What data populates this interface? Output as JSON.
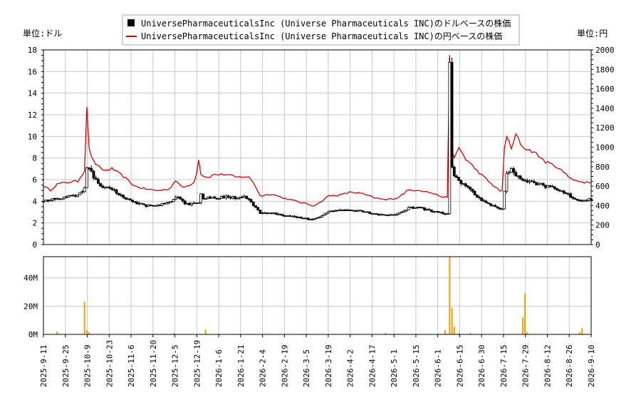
{
  "chart_data": {
    "type": "candlestick+line+bar",
    "legend": {
      "placement": "top-center",
      "entries": [
        {
          "label": "UniversePharmaceuticalsInc (Universe Pharmaceuticals INC)のドルベースの株価",
          "color": "#000000",
          "marker": "square"
        },
        {
          "label": "UniversePharmaceuticalsInc (Universe Pharmaceuticals INC)の円ベースの株価",
          "color": "#dd0000",
          "marker": "line"
        }
      ]
    },
    "left_axis_label": "単位:ドル",
    "right_axis_label": "単位:円",
    "y_left": {
      "min": 0,
      "max": 18,
      "ticks": [
        "0",
        "2",
        "4",
        "6",
        "8",
        "10",
        "12",
        "14",
        "16",
        "18"
      ]
    },
    "y_right": {
      "min": 0,
      "max": 2000,
      "ticks": [
        "0",
        "200",
        "400",
        "600",
        "800",
        "1000",
        "1200",
        "1400",
        "1600",
        "1800",
        "2000"
      ]
    },
    "volume_axis": {
      "min": 0,
      "max": 55,
      "ticks": [
        "0M",
        "20M",
        "40M"
      ]
    },
    "x_tick_labels": [
      "2025-9-11",
      "2025-9-25",
      "2025-10-9",
      "2025-10-23",
      "2025-11-6",
      "2025-11-20",
      "2025-12-5",
      "2025-12-19",
      "2026-1-6",
      "2026-1-21",
      "2026-2-4",
      "2026-2-19",
      "2026-3-5",
      "2026-3-19",
      "2026-4-2",
      "2026-4-17",
      "2026-5-1",
      "2026-5-15",
      "2026-6-1",
      "2026-6-15",
      "2026-6-30",
      "2026-7-15",
      "2026-7-29",
      "2026-8-12",
      "2026-8-26",
      "2026-9-10"
    ],
    "grid": true,
    "keypoints_dollar": [
      [
        0,
        4.0
      ],
      [
        5,
        4.2
      ],
      [
        10,
        4.4
      ],
      [
        15,
        4.6
      ],
      [
        18,
        5.2
      ],
      [
        19,
        7.2
      ],
      [
        19.5,
        9.5
      ],
      [
        20,
        7.2
      ],
      [
        22,
        6.2
      ],
      [
        25,
        5.3
      ],
      [
        30,
        5.1
      ],
      [
        35,
        4.4
      ],
      [
        40,
        3.9
      ],
      [
        45,
        3.6
      ],
      [
        50,
        3.6
      ],
      [
        55,
        3.9
      ],
      [
        58,
        4.4
      ],
      [
        60,
        4.2
      ],
      [
        62,
        3.7
      ],
      [
        66,
        3.8
      ],
      [
        68,
        3.9
      ],
      [
        69,
        4.8
      ],
      [
        70,
        4.2
      ],
      [
        72,
        4.4
      ],
      [
        75,
        4.3
      ],
      [
        80,
        4.4
      ],
      [
        85,
        4.3
      ],
      [
        88,
        4.5
      ],
      [
        90,
        4.2
      ],
      [
        92,
        3.6
      ],
      [
        95,
        2.9
      ],
      [
        100,
        2.9
      ],
      [
        105,
        2.7
      ],
      [
        110,
        2.6
      ],
      [
        115,
        2.4
      ],
      [
        118,
        2.3
      ],
      [
        121,
        2.6
      ],
      [
        125,
        3.0
      ],
      [
        130,
        3.2
      ],
      [
        135,
        3.2
      ],
      [
        140,
        3.1
      ],
      [
        145,
        2.8
      ],
      [
        150,
        2.7
      ],
      [
        155,
        2.8
      ],
      [
        160,
        3.4
      ],
      [
        165,
        3.4
      ],
      [
        170,
        3.1
      ],
      [
        175,
        2.9
      ],
      [
        177,
        2.8
      ],
      [
        178,
        17.0
      ],
      [
        178.5,
        7.5
      ],
      [
        180,
        6.5
      ],
      [
        182,
        5.8
      ],
      [
        185,
        5.5
      ],
      [
        190,
        4.4
      ],
      [
        195,
        3.8
      ],
      [
        200,
        3.3
      ],
      [
        201.5,
        3.3
      ],
      [
        202,
        5.0
      ],
      [
        203,
        6.5
      ],
      [
        205,
        7.0
      ],
      [
        207,
        6.5
      ],
      [
        210,
        6.0
      ],
      [
        215,
        5.7
      ],
      [
        220,
        5.4
      ],
      [
        225,
        5.1
      ],
      [
        230,
        4.6
      ],
      [
        235,
        4.0
      ],
      [
        240,
        4.2
      ]
    ],
    "keypoints_yen": [
      [
        0,
        600
      ],
      [
        3,
        560
      ],
      [
        6,
        620
      ],
      [
        10,
        640
      ],
      [
        15,
        650
      ],
      [
        18,
        760
      ],
      [
        19,
        1430
      ],
      [
        19.5,
        1200
      ],
      [
        20,
        980
      ],
      [
        22,
        850
      ],
      [
        25,
        780
      ],
      [
        27,
        760
      ],
      [
        30,
        780
      ],
      [
        35,
        700
      ],
      [
        38,
        640
      ],
      [
        40,
        600
      ],
      [
        45,
        570
      ],
      [
        50,
        555
      ],
      [
        55,
        570
      ],
      [
        58,
        660
      ],
      [
        60,
        600
      ],
      [
        62,
        590
      ],
      [
        66,
        640
      ],
      [
        67,
        730
      ],
      [
        68,
        880
      ],
      [
        69,
        720
      ],
      [
        70,
        710
      ],
      [
        72,
        690
      ],
      [
        75,
        720
      ],
      [
        80,
        720
      ],
      [
        85,
        690
      ],
      [
        88,
        700
      ],
      [
        90,
        690
      ],
      [
        92,
        640
      ],
      [
        95,
        500
      ],
      [
        100,
        520
      ],
      [
        105,
        480
      ],
      [
        110,
        450
      ],
      [
        115,
        420
      ],
      [
        118,
        400
      ],
      [
        121,
        430
      ],
      [
        125,
        500
      ],
      [
        130,
        510
      ],
      [
        135,
        540
      ],
      [
        140,
        520
      ],
      [
        145,
        480
      ],
      [
        150,
        460
      ],
      [
        155,
        480
      ],
      [
        160,
        560
      ],
      [
        165,
        560
      ],
      [
        170,
        530
      ],
      [
        175,
        490
      ],
      [
        177,
        480
      ],
      [
        178,
        1980
      ],
      [
        178.5,
        1000
      ],
      [
        180,
        880
      ],
      [
        182,
        1000
      ],
      [
        185,
        880
      ],
      [
        190,
        760
      ],
      [
        195,
        650
      ],
      [
        200,
        550
      ],
      [
        201.5,
        550
      ],
      [
        202,
        1000
      ],
      [
        203,
        1120
      ],
      [
        205,
        980
      ],
      [
        207,
        1130
      ],
      [
        210,
        1000
      ],
      [
        215,
        950
      ],
      [
        220,
        850
      ],
      [
        225,
        800
      ],
      [
        230,
        700
      ],
      [
        235,
        640
      ],
      [
        240,
        640
      ]
    ],
    "volume_spikes_M": [
      [
        6,
        2
      ],
      [
        18,
        23
      ],
      [
        19,
        3
      ],
      [
        20,
        1.5
      ],
      [
        57,
        1
      ],
      [
        71,
        3.5
      ],
      [
        150,
        1
      ],
      [
        176,
        3
      ],
      [
        178,
        55
      ],
      [
        179,
        19
      ],
      [
        180,
        5.5
      ],
      [
        182,
        1
      ],
      [
        187,
        1
      ],
      [
        210,
        12
      ],
      [
        211,
        29
      ],
      [
        212,
        1.5
      ],
      [
        235,
        1.5
      ],
      [
        236,
        4.5
      ]
    ]
  }
}
